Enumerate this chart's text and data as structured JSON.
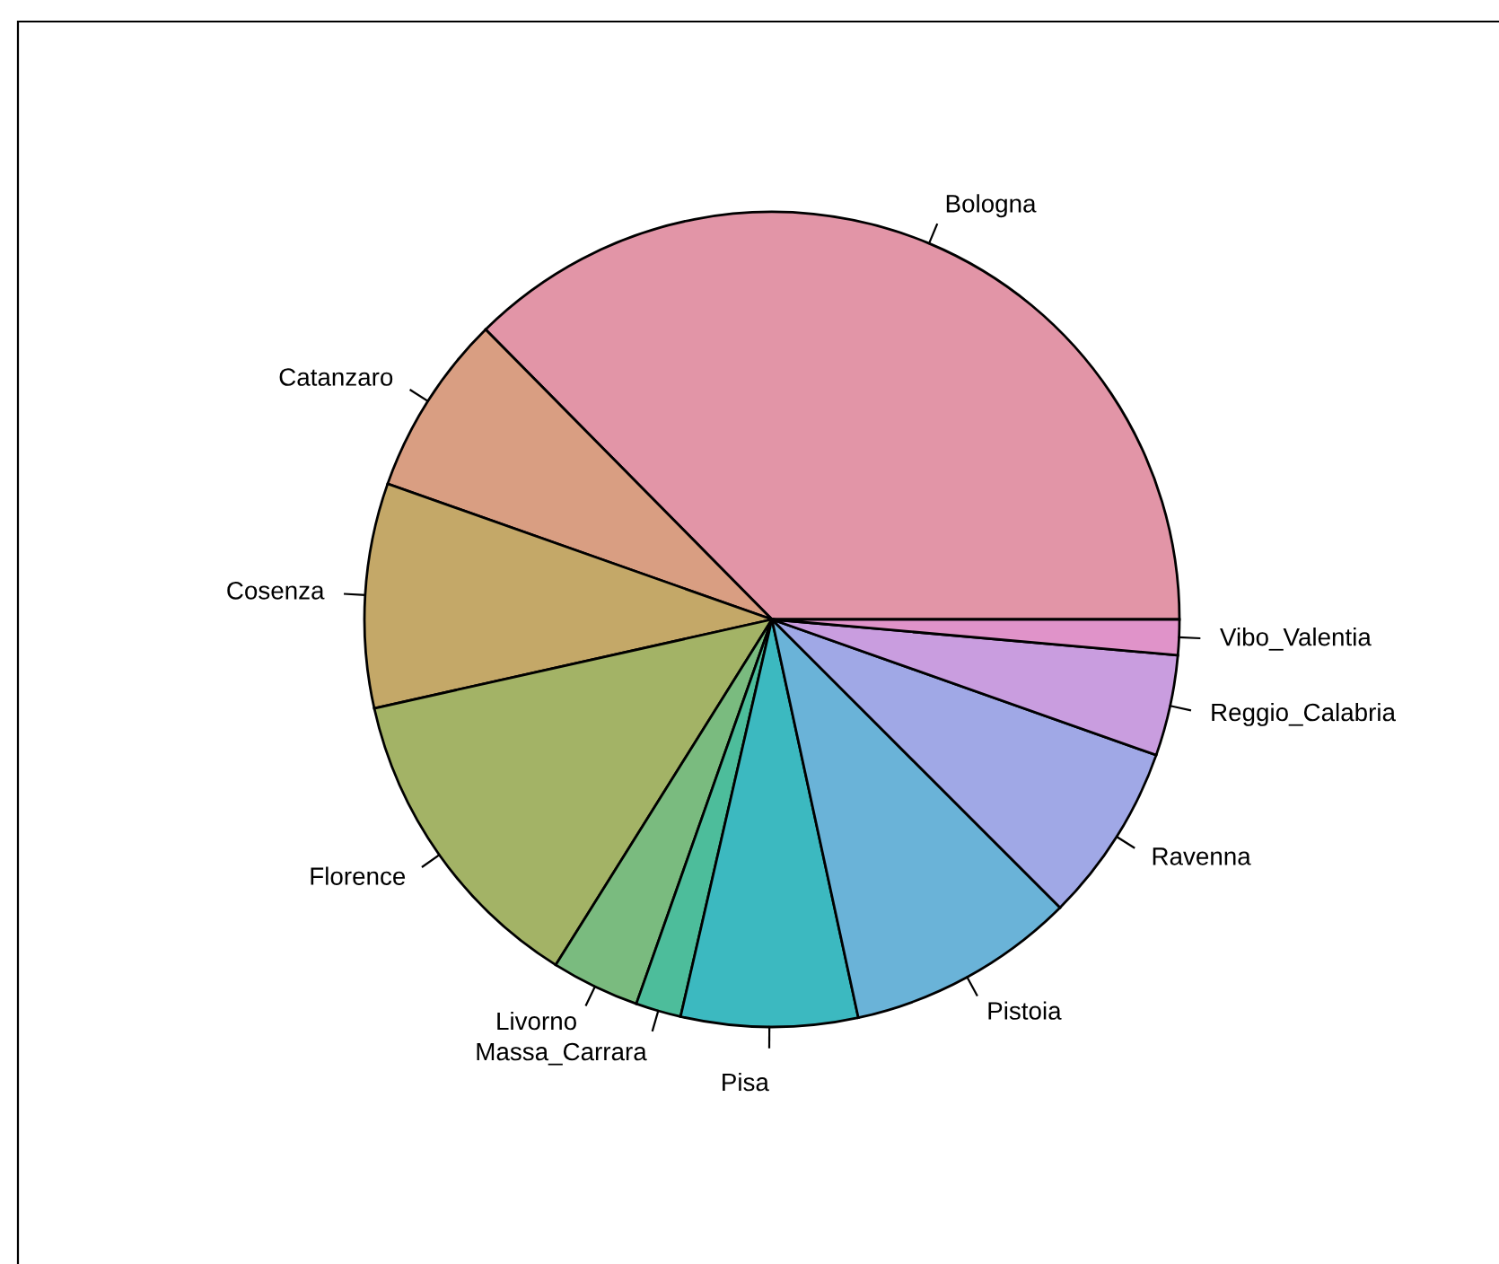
{
  "chart_data": {
    "type": "pie",
    "categories": [
      "Bologna",
      "Catanzaro",
      "Cosenza",
      "Florence",
      "Livorno",
      "Massa_Carrara",
      "Pisa",
      "Pistoia",
      "Ravenna",
      "Reggio_Calabria",
      "Vibo_Valentia"
    ],
    "values": [
      37.4,
      7.2,
      8.9,
      12.6,
      3.5,
      1.8,
      7.0,
      9.1,
      7.1,
      4.0,
      1.4
    ],
    "colors": [
      "#e295a7",
      "#d99e82",
      "#c4a868",
      "#a3b366",
      "#7abb7f",
      "#4dbd9b",
      "#3cb9c0",
      "#6ab3d8",
      "#a0a8e6",
      "#c99ddf",
      "#e093c9"
    ]
  }
}
